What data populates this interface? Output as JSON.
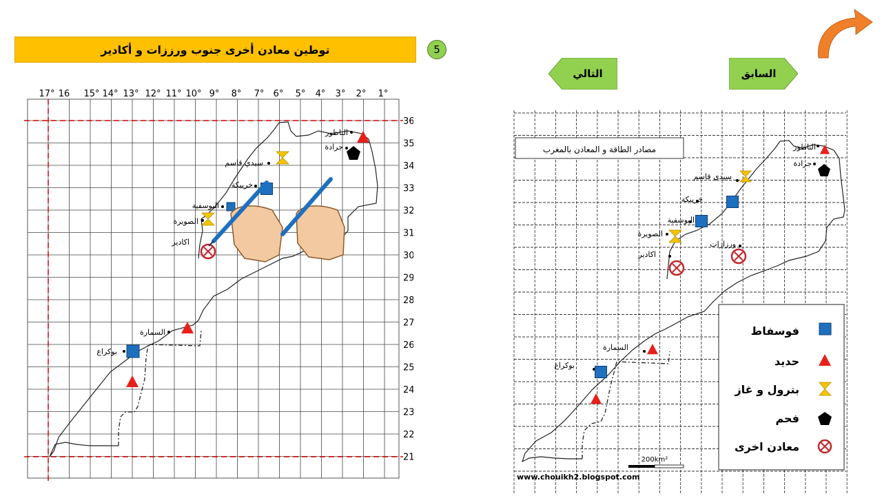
{
  "header": {
    "title": "توطين معادن أخرى جنوب ورززات و أكادير",
    "step_number": "5"
  },
  "nav": {
    "prev_label": "السابق",
    "next_label": "التالي",
    "accent_color": "#92d050",
    "back_arrow_color": "#f07f2a"
  },
  "left_map": {
    "longitude_labels": [
      "17°",
      "16",
      "15°",
      "14°",
      "13°",
      "12°",
      "11°",
      "10°",
      "9°",
      "8°",
      "7°",
      "6°",
      "5°",
      "4°",
      "3°",
      "2°",
      "1°"
    ],
    "latitude_labels": [
      "36°",
      "35°",
      "34°",
      "33°",
      "32°",
      "31°",
      "30°",
      "29°",
      "28°",
      "27°",
      "26°",
      "25°",
      "24°",
      "23°",
      "22°",
      "21°"
    ],
    "city_labels": {
      "nador": "الناظور",
      "jerada": "جرادة",
      "sidi_kacem": "سيدي قاسم",
      "khouribga": "خريبكة",
      "youssoufia": "اليوسفية",
      "essaouira": "الصويرة",
      "agadir": "اكادير",
      "smara": "السمارة",
      "boukraa": "بوكراع"
    }
  },
  "right_map": {
    "title": "مصادر الطاقة و المعادن   بالمغرب",
    "city_labels": {
      "nador": "الناظور",
      "jerada": "جرادة",
      "sidi_kacem": "سيدي قاسم",
      "khouribga": "خريبكة",
      "youssoufia": "اليوسفية",
      "essaouira": "الصويرة",
      "ouarzazate": "ورزازات",
      "agadir": "اكادير",
      "smara": "السمارة",
      "boukraa": "بوكراع"
    },
    "scale_label": "200km²",
    "website": "www.chouikh2.blogspot.com"
  },
  "legend": {
    "phosphate": "فوسفاط",
    "iron": "حديد",
    "oil_gas": "بترول و غاز",
    "coal": "فحم",
    "other_minerals": "معادن اخرى"
  },
  "colors": {
    "phosphate": "#1f6fbf",
    "iron": "#e8201c",
    "oil_gas": "#f5c400",
    "coal": "#000000",
    "other_minerals": "#c0282d",
    "frame_line": "#d00000"
  }
}
